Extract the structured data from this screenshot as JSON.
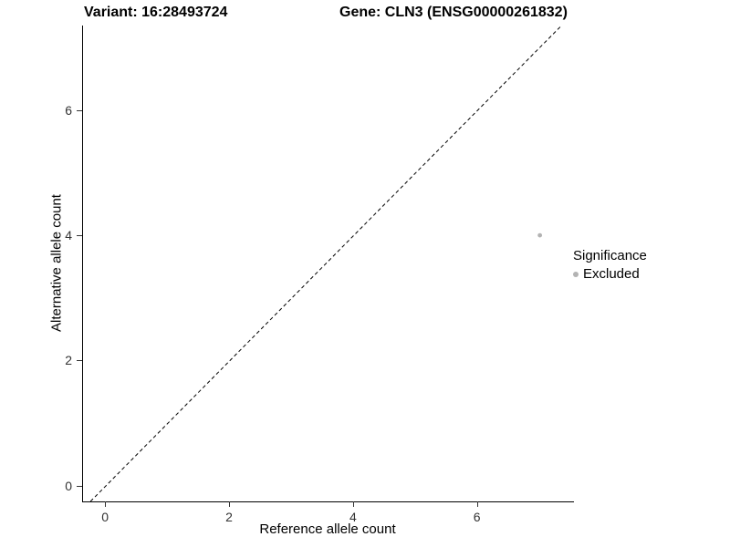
{
  "chart_data": {
    "type": "scatter",
    "title_left": "Variant: 16:28493724",
    "title_right": "Gene: CLN3 (ENSG00000261832)",
    "xlabel": "Reference allele count",
    "ylabel": "Alternative allele count",
    "xlim": [
      -0.37,
      7.55
    ],
    "ylim": [
      -0.25,
      7.35
    ],
    "xticks": [
      0,
      2,
      4,
      6
    ],
    "yticks": [
      0,
      2,
      4,
      6
    ],
    "grid": false,
    "identity_line": {
      "style": "dashed",
      "slope": 1,
      "intercept": 0,
      "color": "#000000"
    },
    "series": [
      {
        "name": "Excluded",
        "color": "#b3b3b3",
        "points": [
          {
            "x": 7,
            "y": 4
          }
        ]
      }
    ],
    "legend": {
      "position": "right",
      "title": "Significance",
      "items": [
        {
          "label": "Excluded",
          "color": "#b3b3b3"
        }
      ]
    }
  }
}
